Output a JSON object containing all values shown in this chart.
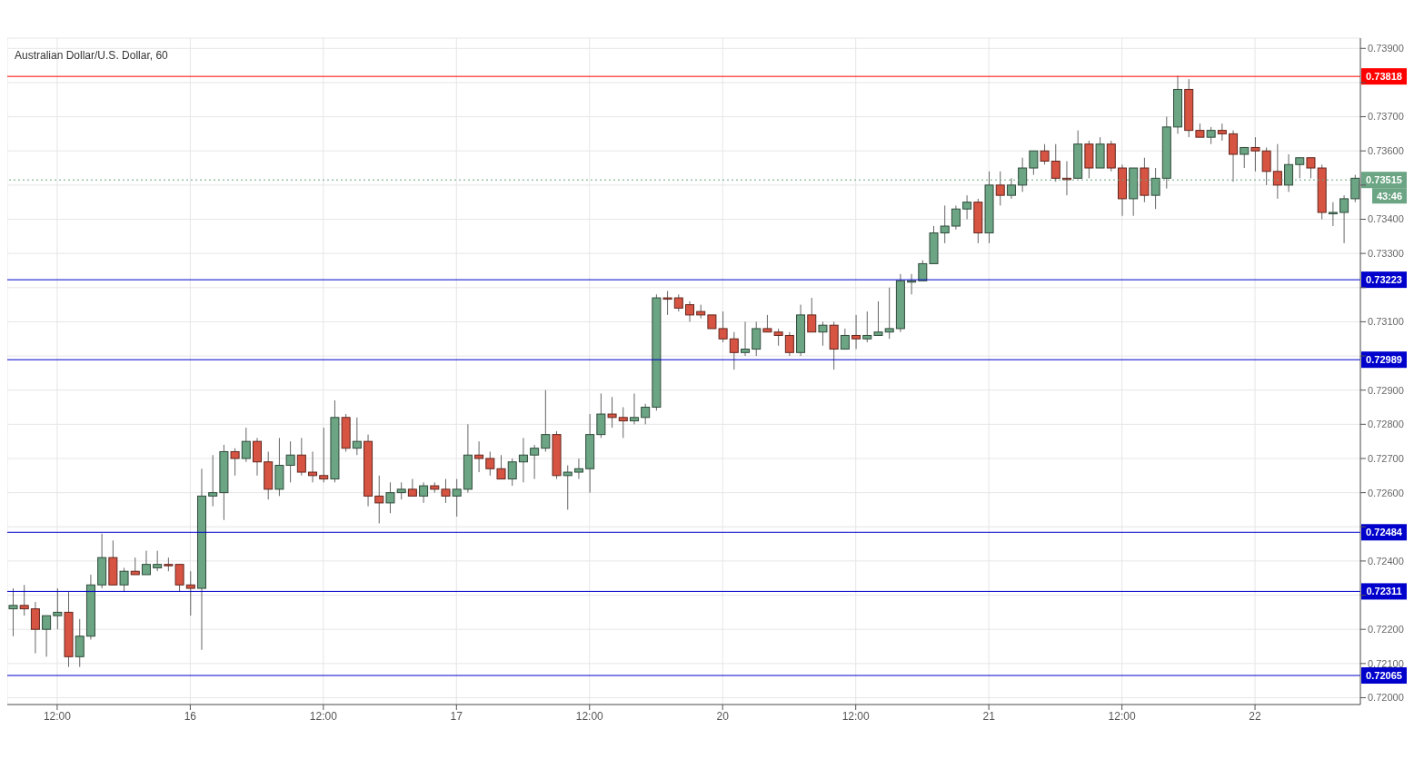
{
  "chart_data": {
    "type": "candlestick",
    "title": "Australian Dollar/U.S. Dollar, 60",
    "categories": [
      null,
      null,
      null,
      null,
      "12:00",
      null,
      null,
      null,
      null,
      null,
      null,
      null,
      null,
      null,
      null,
      null,
      "16",
      null,
      null,
      null,
      null,
      null,
      null,
      null,
      null,
      null,
      null,
      null,
      "12:00",
      null,
      null,
      null,
      null,
      null,
      null,
      null,
      null,
      null,
      null,
      null,
      "17",
      null,
      null,
      null,
      null,
      null,
      null,
      null,
      null,
      null,
      null,
      null,
      "12:00",
      null,
      null,
      null,
      null,
      null,
      null,
      null,
      null,
      null,
      null,
      null,
      "20",
      null,
      null,
      null,
      null,
      null,
      null,
      null,
      null,
      null,
      null,
      null,
      "12:00",
      null,
      null,
      null,
      null,
      null,
      null,
      null,
      null,
      null,
      null,
      null,
      "21",
      null,
      null,
      null,
      null,
      null,
      null,
      null,
      null,
      null,
      null,
      null,
      "12:00",
      null,
      null,
      null,
      null,
      null,
      null,
      null,
      null,
      null,
      null,
      null,
      "22",
      null,
      null,
      null,
      null,
      null,
      null,
      null,
      null,
      null
    ],
    "ohlc": [
      [
        0.7226,
        0.7232,
        0.7218,
        0.7227
      ],
      [
        0.7227,
        0.7233,
        0.7224,
        0.7226
      ],
      [
        0.7226,
        0.7228,
        0.7213,
        0.722
      ],
      [
        0.722,
        0.7224,
        0.7212,
        0.7224
      ],
      [
        0.7224,
        0.7232,
        0.722,
        0.7225
      ],
      [
        0.7225,
        0.7231,
        0.7209,
        0.7212
      ],
      [
        0.7212,
        0.7223,
        0.7209,
        0.7218
      ],
      [
        0.7218,
        0.7236,
        0.7217,
        0.7233
      ],
      [
        0.7233,
        0.7248,
        0.7232,
        0.7241
      ],
      [
        0.7241,
        0.7246,
        0.7233,
        0.7233
      ],
      [
        0.7233,
        0.7238,
        0.7231,
        0.7237
      ],
      [
        0.7237,
        0.7241,
        0.7236,
        0.7236
      ],
      [
        0.7236,
        0.7243,
        0.7236,
        0.7239
      ],
      [
        0.7238,
        0.7243,
        0.7237,
        0.7239
      ],
      [
        0.7239,
        0.7241,
        0.7237,
        0.7239
      ],
      [
        0.7239,
        0.7239,
        0.7231,
        0.7233
      ],
      [
        0.7233,
        0.7237,
        0.7224,
        0.7232
      ],
      [
        0.7232,
        0.7267,
        0.7214,
        0.7259
      ],
      [
        0.7259,
        0.7271,
        0.7256,
        0.726
      ],
      [
        0.726,
        0.7274,
        0.7252,
        0.7272
      ],
      [
        0.7272,
        0.7273,
        0.7265,
        0.727
      ],
      [
        0.727,
        0.7279,
        0.7269,
        0.7275
      ],
      [
        0.7275,
        0.7276,
        0.7265,
        0.7269
      ],
      [
        0.7269,
        0.7272,
        0.7258,
        0.7261
      ],
      [
        0.7261,
        0.7276,
        0.7259,
        0.7268
      ],
      [
        0.7268,
        0.7275,
        0.7263,
        0.7271
      ],
      [
        0.7271,
        0.7276,
        0.7265,
        0.7266
      ],
      [
        0.7266,
        0.7272,
        0.7263,
        0.7265
      ],
      [
        0.7265,
        0.7279,
        0.7263,
        0.7264
      ],
      [
        0.7264,
        0.7287,
        0.7263,
        0.7282
      ],
      [
        0.7282,
        0.7283,
        0.7272,
        0.7273
      ],
      [
        0.7273,
        0.7282,
        0.7271,
        0.7275
      ],
      [
        0.7275,
        0.7277,
        0.7256,
        0.7259
      ],
      [
        0.7259,
        0.7265,
        0.7251,
        0.7257
      ],
      [
        0.7257,
        0.7263,
        0.7254,
        0.726
      ],
      [
        0.726,
        0.7263,
        0.7258,
        0.7261
      ],
      [
        0.7261,
        0.7264,
        0.7259,
        0.7259
      ],
      [
        0.7259,
        0.7263,
        0.7257,
        0.7262
      ],
      [
        0.7262,
        0.7263,
        0.726,
        0.7261
      ],
      [
        0.7261,
        0.7264,
        0.7257,
        0.7259
      ],
      [
        0.7259,
        0.7264,
        0.7253,
        0.7261
      ],
      [
        0.7261,
        0.728,
        0.726,
        0.7271
      ],
      [
        0.7271,
        0.7275,
        0.7266,
        0.727
      ],
      [
        0.727,
        0.7272,
        0.7265,
        0.7267
      ],
      [
        0.7267,
        0.7271,
        0.7264,
        0.7264
      ],
      [
        0.7264,
        0.727,
        0.7262,
        0.7269
      ],
      [
        0.7269,
        0.7276,
        0.7263,
        0.7271
      ],
      [
        0.7271,
        0.7274,
        0.7264,
        0.7273
      ],
      [
        0.7273,
        0.729,
        0.7272,
        0.7277
      ],
      [
        0.7277,
        0.7278,
        0.7264,
        0.7265
      ],
      [
        0.7265,
        0.7268,
        0.7255,
        0.7266
      ],
      [
        0.7266,
        0.727,
        0.7264,
        0.7267
      ],
      [
        0.7267,
        0.7283,
        0.726,
        0.7277
      ],
      [
        0.7277,
        0.7289,
        0.7276,
        0.7283
      ],
      [
        0.7283,
        0.7288,
        0.7279,
        0.7282
      ],
      [
        0.7282,
        0.7285,
        0.7276,
        0.7281
      ],
      [
        0.7281,
        0.7289,
        0.728,
        0.7282
      ],
      [
        0.7282,
        0.7286,
        0.728,
        0.7285
      ],
      [
        0.7285,
        0.7318,
        0.7284,
        0.7317
      ],
      [
        0.7317,
        0.7319,
        0.7312,
        0.7317
      ],
      [
        0.7317,
        0.7318,
        0.7313,
        0.7314
      ],
      [
        0.7315,
        0.7316,
        0.731,
        0.7312
      ],
      [
        0.7313,
        0.7315,
        0.7311,
        0.7312
      ],
      [
        0.7312,
        0.7312,
        0.7308,
        0.7308
      ],
      [
        0.7308,
        0.7313,
        0.7304,
        0.7305
      ],
      [
        0.7305,
        0.7307,
        0.7296,
        0.7301
      ],
      [
        0.7301,
        0.731,
        0.73,
        0.7302
      ],
      [
        0.7302,
        0.731,
        0.73,
        0.7308
      ],
      [
        0.7308,
        0.7312,
        0.7307,
        0.7307
      ],
      [
        0.7307,
        0.7308,
        0.7303,
        0.7306
      ],
      [
        0.7306,
        0.7307,
        0.73,
        0.7301
      ],
      [
        0.7301,
        0.7315,
        0.73,
        0.7312
      ],
      [
        0.7312,
        0.7317,
        0.7307,
        0.7307
      ],
      [
        0.7307,
        0.731,
        0.7303,
        0.7309
      ],
      [
        0.7309,
        0.731,
        0.7296,
        0.7302
      ],
      [
        0.7302,
        0.7308,
        0.7302,
        0.7306
      ],
      [
        0.7306,
        0.7312,
        0.7302,
        0.7305
      ],
      [
        0.7305,
        0.7313,
        0.7304,
        0.7306
      ],
      [
        0.7306,
        0.7316,
        0.7306,
        0.7307
      ],
      [
        0.7307,
        0.732,
        0.7305,
        0.7308
      ],
      [
        0.7308,
        0.7324,
        0.7307,
        0.7322
      ],
      [
        0.7322,
        0.7324,
        0.7318,
        0.7322
      ],
      [
        0.7322,
        0.7328,
        0.7322,
        0.7327
      ],
      [
        0.7327,
        0.7338,
        0.7327,
        0.7336
      ],
      [
        0.7336,
        0.7344,
        0.7333,
        0.7338
      ],
      [
        0.7338,
        0.7344,
        0.7337,
        0.7343
      ],
      [
        0.7343,
        0.7347,
        0.734,
        0.7345
      ],
      [
        0.7345,
        0.7346,
        0.7333,
        0.7336
      ],
      [
        0.7336,
        0.7354,
        0.7333,
        0.735
      ],
      [
        0.735,
        0.7354,
        0.7344,
        0.7347
      ],
      [
        0.7347,
        0.7352,
        0.7346,
        0.735
      ],
      [
        0.735,
        0.7358,
        0.7348,
        0.7355
      ],
      [
        0.7355,
        0.736,
        0.7353,
        0.736
      ],
      [
        0.736,
        0.7362,
        0.7356,
        0.7357
      ],
      [
        0.7357,
        0.7362,
        0.7351,
        0.7352
      ],
      [
        0.7352,
        0.7357,
        0.7347,
        0.7352
      ],
      [
        0.7352,
        0.7366,
        0.7352,
        0.7362
      ],
      [
        0.7362,
        0.7363,
        0.7352,
        0.7355
      ],
      [
        0.7355,
        0.7364,
        0.7355,
        0.7362
      ],
      [
        0.7362,
        0.7363,
        0.7354,
        0.7355
      ],
      [
        0.7355,
        0.7356,
        0.7341,
        0.7346
      ],
      [
        0.7346,
        0.7355,
        0.7341,
        0.7355
      ],
      [
        0.7355,
        0.7358,
        0.7345,
        0.7347
      ],
      [
        0.7347,
        0.7355,
        0.7343,
        0.7352
      ],
      [
        0.7352,
        0.737,
        0.7349,
        0.7367
      ],
      [
        0.7367,
        0.7382,
        0.7365,
        0.7378
      ],
      [
        0.7378,
        0.7381,
        0.7364,
        0.7366
      ],
      [
        0.7366,
        0.7368,
        0.7364,
        0.7364
      ],
      [
        0.7364,
        0.7367,
        0.7362,
        0.7366
      ],
      [
        0.7366,
        0.7368,
        0.7363,
        0.7365
      ],
      [
        0.7365,
        0.7366,
        0.7351,
        0.7359
      ],
      [
        0.7359,
        0.7361,
        0.7355,
        0.7361
      ],
      [
        0.7361,
        0.7364,
        0.7354,
        0.736
      ],
      [
        0.736,
        0.7361,
        0.735,
        0.7354
      ],
      [
        0.7354,
        0.7362,
        0.7346,
        0.735
      ],
      [
        0.735,
        0.7359,
        0.7348,
        0.7356
      ],
      [
        0.7356,
        0.7358,
        0.7352,
        0.7358
      ],
      [
        0.7358,
        0.7358,
        0.7352,
        0.7355
      ],
      [
        0.7355,
        0.7356,
        0.734,
        0.7342
      ],
      [
        0.7342,
        0.7345,
        0.7338,
        0.7342
      ],
      [
        0.7342,
        0.7347,
        0.7333,
        0.7346
      ],
      [
        0.7346,
        0.7353,
        0.7345,
        0.7352
      ]
    ],
    "colors": [
      "#6ba583",
      "#d75442",
      "#d75442",
      "#6ba583",
      "#6ba583",
      "#d75442",
      "#6ba583",
      "#6ba583",
      "#6ba583",
      "#d75442",
      "#6ba583",
      "#d75442",
      "#6ba583",
      "#6ba583",
      "#d75442",
      "#d75442",
      "#d75442",
      "#6ba583",
      "#6ba583",
      "#6ba583",
      "#d75442",
      "#6ba583",
      "#d75442",
      "#d75442",
      "#6ba583",
      "#6ba583",
      "#d75442",
      "#d75442",
      "#d75442",
      "#6ba583",
      "#d75442",
      "#6ba583",
      "#d75442",
      "#d75442",
      "#6ba583",
      "#6ba583",
      "#d75442",
      "#6ba583",
      "#d75442",
      "#d75442",
      "#6ba583",
      "#6ba583",
      "#d75442",
      "#d75442",
      "#d75442",
      "#6ba583",
      "#6ba583",
      "#6ba583",
      "#6ba583",
      "#d75442",
      "#6ba583",
      "#6ba583",
      "#6ba583",
      "#6ba583",
      "#d75442",
      "#d75442",
      "#6ba583",
      "#6ba583",
      "#6ba583",
      "#d75442",
      "#d75442",
      "#d75442",
      "#d75442",
      "#d75442",
      "#d75442",
      "#d75442",
      "#6ba583",
      "#6ba583",
      "#d75442",
      "#d75442",
      "#d75442",
      "#6ba583",
      "#d75442",
      "#6ba583",
      "#d75442",
      "#6ba583",
      "#d75442",
      "#6ba583",
      "#6ba583",
      "#6ba583",
      "#6ba583",
      "#6ba583",
      "#6ba583",
      "#6ba583",
      "#6ba583",
      "#6ba583",
      "#6ba583",
      "#d75442",
      "#6ba583",
      "#d75442",
      "#6ba583",
      "#6ba583",
      "#6ba583",
      "#d75442",
      "#d75442",
      "#d75442",
      "#6ba583",
      "#d75442",
      "#6ba583",
      "#d75442",
      "#d75442",
      "#6ba583",
      "#d75442",
      "#6ba583",
      "#6ba583",
      "#6ba583",
      "#d75442",
      "#d75442",
      "#6ba583",
      "#d75442",
      "#d75442",
      "#6ba583",
      "#d75442",
      "#d75442",
      "#d75442",
      "#6ba583",
      "#6ba583",
      "#d75442",
      "#d75442",
      "#6ba583",
      "#6ba583",
      "#6ba583"
    ],
    "ylim": [
      0.7198,
      0.7393
    ],
    "yticks": [
      {
        "value": 0.72,
        "label": "0.72000"
      },
      {
        "value": 0.721,
        "label": "0.72100"
      },
      {
        "value": 0.722,
        "label": "0.72200"
      },
      {
        "value": 0.723,
        "label": null
      },
      {
        "value": 0.724,
        "label": "0.72400"
      },
      {
        "value": 0.725,
        "label": null
      },
      {
        "value": 0.726,
        "label": "0.72600"
      },
      {
        "value": 0.727,
        "label": "0.72700"
      },
      {
        "value": 0.728,
        "label": "0.72800"
      },
      {
        "value": 0.729,
        "label": "0.72900"
      },
      {
        "value": 0.73,
        "label": null
      },
      {
        "value": 0.731,
        "label": "0.73100"
      },
      {
        "value": 0.732,
        "label": null
      },
      {
        "value": 0.733,
        "label": "0.73300"
      },
      {
        "value": 0.734,
        "label": "0.73400"
      },
      {
        "value": 0.735,
        "label": null
      },
      {
        "value": 0.736,
        "label": "0.73600"
      },
      {
        "value": 0.737,
        "label": "0.73700"
      },
      {
        "value": 0.738,
        "label": null
      },
      {
        "value": 0.739,
        "label": "0.73900"
      }
    ],
    "grid": true,
    "ref_lines": [
      {
        "axis": "y",
        "value": 0.73818,
        "label": "0.73818",
        "color": "#ff0000"
      },
      {
        "axis": "y",
        "value": 0.73515,
        "label": "0.73515",
        "color": "#6ba583",
        "line_style": "dotted"
      },
      {
        "axis": "y",
        "value": 0.73223,
        "label": "0.73223",
        "color": "#0000cc"
      },
      {
        "axis": "y",
        "value": 0.72989,
        "label": "0.72989",
        "color": "#0000cc"
      },
      {
        "axis": "y",
        "value": 0.72484,
        "label": "0.72484",
        "color": "#0000cc"
      },
      {
        "axis": "y",
        "value": 0.72311,
        "label": "0.72311",
        "color": "#0000cc"
      },
      {
        "axis": "y",
        "value": 0.72065,
        "label": "0.72065",
        "color": "#0000cc"
      }
    ],
    "annotations": [
      "43:46"
    ]
  }
}
